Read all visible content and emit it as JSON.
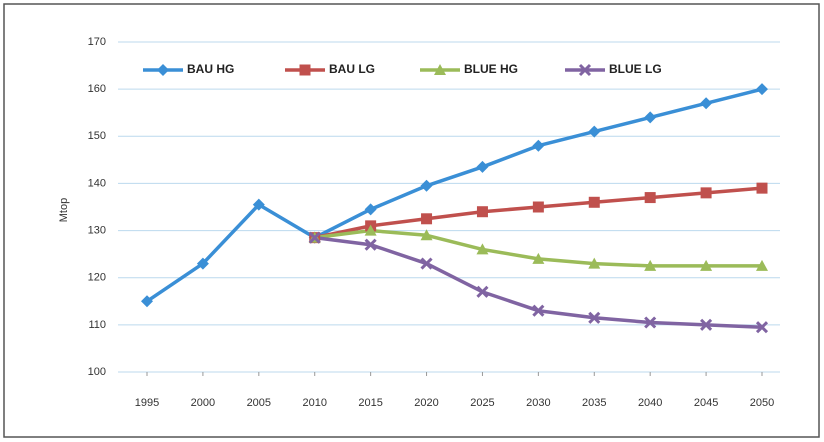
{
  "chart_data": {
    "type": "line",
    "y_label": "Mtop",
    "x": [
      1995,
      2000,
      2005,
      2010,
      2015,
      2020,
      2025,
      2030,
      2035,
      2040,
      2045,
      2050
    ],
    "xlim": [
      1995,
      2050
    ],
    "xticks": [
      1995,
      2000,
      2005,
      2010,
      2015,
      2020,
      2025,
      2030,
      2035,
      2040,
      2045,
      2050
    ],
    "ylim": [
      100,
      170
    ],
    "yticks": [
      100,
      110,
      120,
      130,
      140,
      150,
      160,
      170
    ],
    "grid": true,
    "legend": "top",
    "series": [
      {
        "name": "BAU HG",
        "color": "#3a8fd6",
        "marker": "diamond",
        "values": [
          115,
          123,
          135.5,
          128.5,
          134.5,
          139.5,
          143.5,
          148,
          151,
          154,
          157,
          160
        ]
      },
      {
        "name": "BAU LG",
        "color": "#c0504d",
        "marker": "square",
        "values": [
          null,
          null,
          null,
          128.5,
          131,
          132.5,
          134,
          135,
          136,
          137,
          138,
          139
        ]
      },
      {
        "name": "BLUE HG",
        "color": "#9bbb59",
        "marker": "triangle",
        "values": [
          null,
          null,
          null,
          128.5,
          130,
          129,
          126,
          124,
          123,
          122.5,
          122.5,
          122.5
        ]
      },
      {
        "name": "BLUE LG",
        "color": "#8064a2",
        "marker": "x",
        "values": [
          null,
          null,
          null,
          128.5,
          127,
          123,
          117,
          113,
          111.5,
          110.5,
          110,
          109.5
        ]
      }
    ]
  }
}
